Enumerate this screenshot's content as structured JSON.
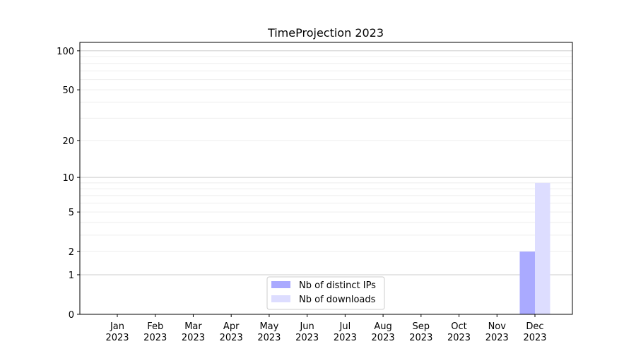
{
  "chart_data": {
    "type": "bar",
    "title": "TimeProjection 2023",
    "xlabel": "",
    "ylabel": "",
    "categories": [
      "Jan\n2023",
      "Feb\n2023",
      "Mar\n2023",
      "Apr\n2023",
      "May\n2023",
      "Jun\n2023",
      "Jul\n2023",
      "Aug\n2023",
      "Sep\n2023",
      "Oct\n2023",
      "Nov\n2023",
      "Dec\n2023"
    ],
    "series": [
      {
        "name": "Nb of distinct IPs",
        "color": "#aaaaff",
        "values": [
          0,
          0,
          0,
          0,
          0,
          0,
          0,
          0,
          0,
          0,
          0,
          2
        ]
      },
      {
        "name": "Nb of downloads",
        "color": "#ddddff",
        "values": [
          0,
          0,
          0,
          0,
          0,
          0,
          0,
          0,
          0,
          0,
          0,
          9
        ]
      }
    ],
    "yscale": "log(1+y)",
    "ylim": [
      0,
      116
    ],
    "yticks": [
      0,
      1,
      2,
      5,
      10,
      20,
      50,
      100
    ],
    "ytick_labels": [
      "0",
      "1",
      "2",
      "5",
      "10",
      "20",
      "50",
      "100"
    ],
    "grid": true,
    "legend_position": "lower-center"
  }
}
